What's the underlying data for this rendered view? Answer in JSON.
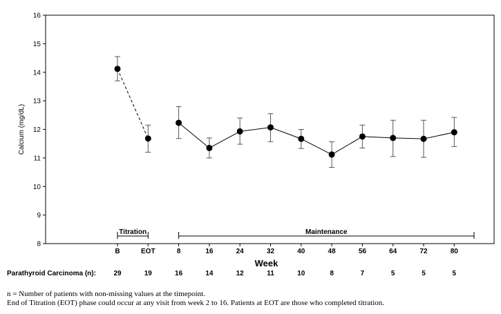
{
  "chart_data": {
    "type": "line",
    "ylabel": "Calcium (mg/dL)",
    "xlabel": "Week",
    "ylim": [
      8,
      16
    ],
    "yticks": [
      "8",
      "9",
      "10",
      "11",
      "12",
      "13",
      "14",
      "15",
      "16"
    ],
    "categories": [
      "B",
      "EOT",
      "8",
      "16",
      "24",
      "32",
      "40",
      "48",
      "56",
      "64",
      "72",
      "80"
    ],
    "series": [
      {
        "values": [
          14.12,
          11.68,
          12.23,
          11.35,
          11.93,
          12.07,
          11.67,
          11.12,
          11.75,
          11.7,
          11.67,
          11.9
        ],
        "lower": [
          13.7,
          11.2,
          11.68,
          11.0,
          11.48,
          11.57,
          11.33,
          10.67,
          11.35,
          11.05,
          11.02,
          11.4
        ],
        "upper": [
          14.55,
          12.15,
          12.8,
          11.7,
          12.4,
          12.55,
          12.0,
          11.57,
          12.15,
          12.32,
          12.32,
          12.42
        ],
        "dashed_segments": [
          [
            0,
            1
          ]
        ],
        "gap_segments": [
          [
            1,
            2
          ]
        ]
      }
    ],
    "phases": [
      {
        "label": "Titration",
        "from": "B",
        "to": "EOT"
      },
      {
        "label": "Maintenance",
        "from": "8",
        "to": "end"
      }
    ],
    "n_row": {
      "label": "Parathyroid Carcinoma (n):",
      "values": [
        "29",
        "19",
        "16",
        "14",
        "12",
        "11",
        "10",
        "8",
        "7",
        "5",
        "5",
        "5"
      ]
    },
    "grid": false
  },
  "footnotes": [
    "n = Number of patients with non-missing values at the timepoint.",
    "End of Titration (EOT) phase could occur at any visit from week 2 to 16.  Patients at EOT are those who completed titration."
  ]
}
